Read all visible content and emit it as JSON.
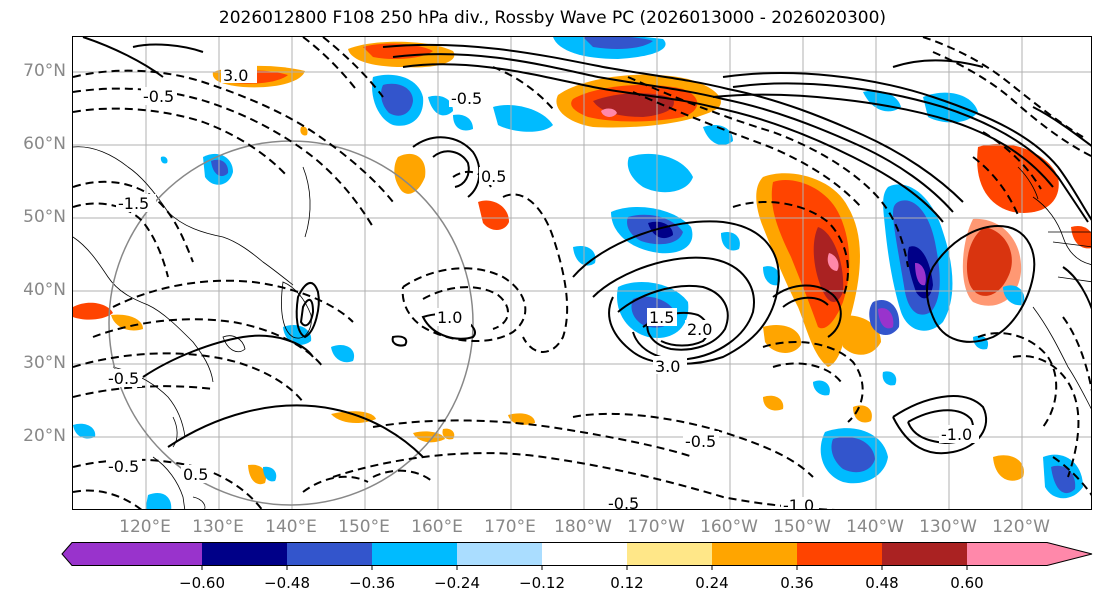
{
  "title": "2026012800 F108 250 hPa div., Rossby Wave PC (2026013000 - 2026020300)",
  "latitude_labels": [
    "70°N",
    "60°N",
    "50°N",
    "40°N",
    "30°N",
    "20°N"
  ],
  "longitude_labels": [
    "120°E",
    "130°E",
    "140°E",
    "150°E",
    "160°E",
    "170°E",
    "180°W",
    "170°W",
    "160°W",
    "150°W",
    "140°W",
    "130°W",
    "120°W"
  ],
  "contour_labels": [
    "3.0",
    "-0.5",
    "-1.5",
    "1.0",
    "0.5",
    "-0.5",
    "2.0",
    "3.0",
    "-0.5",
    "-1.0",
    "-0.5",
    "-0.5",
    "1.5",
    "0.5",
    "-0.5",
    "-1.0"
  ],
  "colorbar": {
    "colors": [
      "#9933cc",
      "#000088",
      "#3355cc",
      "#00bbff",
      "#aaddff",
      "#ffffff",
      "#ffe788",
      "#ffa500",
      "#ff4400",
      "#aa2222",
      "#ff88aa"
    ],
    "tick_labels": [
      "−0.60",
      "−0.48",
      "−0.36",
      "−0.24",
      "−0.12",
      "0.12",
      "0.24",
      "0.36",
      "0.48",
      "0.60"
    ]
  }
}
